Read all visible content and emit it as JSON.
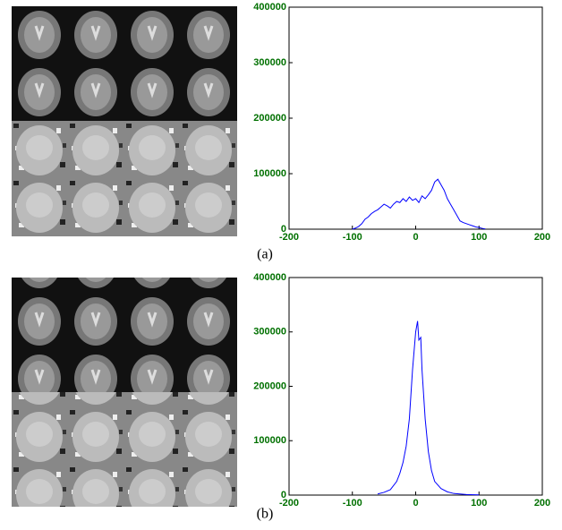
{
  "chart_data": [
    {
      "type": "line",
      "label": "(a)",
      "color": "#0000ff",
      "x": [
        -100,
        -95,
        -90,
        -85,
        -80,
        -75,
        -70,
        -65,
        -60,
        -55,
        -50,
        -45,
        -40,
        -35,
        -30,
        -25,
        -20,
        -15,
        -10,
        -5,
        0,
        5,
        10,
        15,
        20,
        25,
        30,
        35,
        40,
        45,
        50,
        55,
        60,
        65,
        70,
        75,
        80,
        85,
        90,
        95,
        100,
        105,
        110
      ],
      "values": [
        0,
        2000,
        5000,
        10000,
        18000,
        22000,
        28000,
        32000,
        35000,
        40000,
        45000,
        42000,
        38000,
        45000,
        50000,
        48000,
        55000,
        50000,
        58000,
        52000,
        55000,
        48000,
        60000,
        55000,
        62000,
        70000,
        85000,
        90000,
        80000,
        70000,
        55000,
        45000,
        35000,
        25000,
        15000,
        12000,
        10000,
        8000,
        6000,
        4000,
        3000,
        1500,
        500
      ],
      "xlim": [
        -200,
        200
      ],
      "xticks": [
        -200,
        -100,
        0,
        100,
        200
      ],
      "ylim": [
        0,
        400000
      ],
      "yticks": [
        0,
        100000,
        200000,
        300000,
        400000
      ]
    },
    {
      "type": "line",
      "label": "(b)",
      "color": "#0000ff",
      "x": [
        -60,
        -50,
        -40,
        -30,
        -25,
        -20,
        -15,
        -10,
        -5,
        0,
        3,
        5,
        8,
        10,
        15,
        20,
        25,
        30,
        40,
        50,
        60,
        80,
        100
      ],
      "values": [
        2000,
        5000,
        10000,
        25000,
        40000,
        60000,
        90000,
        140000,
        230000,
        300000,
        320000,
        285000,
        290000,
        230000,
        140000,
        80000,
        45000,
        25000,
        12000,
        6000,
        3000,
        1000,
        500
      ],
      "xlim": [
        -200,
        200
      ],
      "xticks": [
        -200,
        -100,
        0,
        100,
        200
      ],
      "ylim": [
        0,
        400000
      ],
      "yticks": [
        0,
        100000,
        200000,
        300000,
        400000
      ]
    }
  ]
}
